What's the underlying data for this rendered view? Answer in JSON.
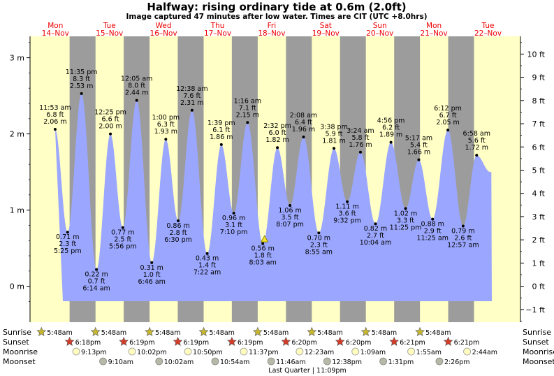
{
  "header": {
    "title": "Halfway: rising  ordinary tide at 0.6m (2.0ft)",
    "subtitle": "Image captured 47 minutes after low water. Times are CIT (UTC +8.0hrs)"
  },
  "colors": {
    "day": "#ffffc6",
    "night": "#9c9c9c",
    "tide_fill": "#9ba7ff",
    "day_label": "#ee0000",
    "sunrise_star": "#c8b830",
    "sunset_star": "#d23c28",
    "moonrise": "#fffcc0",
    "moonset": "#b8b8a8"
  },
  "chart_data": {
    "type": "area",
    "title": "Halfway: rising  ordinary tide at 0.6m (2.0ft)",
    "y_left_unit": "m",
    "y_left_ticks": [
      "0 m",
      "1 m",
      "2 m",
      "3 m"
    ],
    "y_right_ticks": [
      "−1 ft",
      "0 ft",
      "1 ft",
      "2 ft",
      "3 ft",
      "4 ft",
      "5 ft",
      "6 ft",
      "7 ft",
      "8 ft",
      "9 ft",
      "10 ft"
    ],
    "ylim": [
      -0.27,
      3.42
    ],
    "days": [
      {
        "dow": "Mon",
        "date": "14–Nov"
      },
      {
        "dow": "Tue",
        "date": "15–Nov"
      },
      {
        "dow": "Wed",
        "date": "16–Nov"
      },
      {
        "dow": "Thu",
        "date": "17–Nov"
      },
      {
        "dow": "Fri",
        "date": "18–Nov"
      },
      {
        "dow": "Sat",
        "date": "19–Nov"
      },
      {
        "dow": "Sun",
        "date": "20–Nov"
      },
      {
        "dow": "Mon",
        "date": "21–Nov"
      },
      {
        "dow": "Tue",
        "date": "22–Nov"
      }
    ],
    "start_time": "2022-11-14T00:00",
    "end_time": "2022-11-22T08:00",
    "current_time": "2022-11-18T08:50",
    "current_height_m": 0.6,
    "tides": [
      {
        "time": "11:53 am",
        "day": 0,
        "hour": 11.883,
        "type": "high",
        "m": 2.06,
        "ft": "6.8 ft",
        "m_label": "2.06 m"
      },
      {
        "time": "5:25 pm",
        "day": 0,
        "hour": 17.417,
        "type": "low",
        "m": 0.71,
        "ft": "2.3 ft",
        "m_label": "0.71 m"
      },
      {
        "time": "11:35 pm",
        "day": 0,
        "hour": 23.583,
        "type": "high",
        "m": 2.53,
        "ft": "8.3 ft",
        "m_label": "2.53 m"
      },
      {
        "time": "6:14 am",
        "day": 1,
        "hour": 6.233,
        "type": "low",
        "m": 0.22,
        "ft": "0.7 ft",
        "m_label": "0.22 m"
      },
      {
        "time": "12:25 pm",
        "day": 1,
        "hour": 12.417,
        "type": "high",
        "m": 2.0,
        "ft": "6.6 ft",
        "m_label": "2.00 m"
      },
      {
        "time": "5:56 pm",
        "day": 1,
        "hour": 17.933,
        "type": "low",
        "m": 0.77,
        "ft": "2.5 ft",
        "m_label": "0.77 m"
      },
      {
        "time": "12:05 am",
        "day": 2,
        "hour": 0.083,
        "type": "high",
        "m": 2.44,
        "ft": "8.0 ft",
        "m_label": "2.44 m"
      },
      {
        "time": "6:46 am",
        "day": 2,
        "hour": 6.767,
        "type": "low",
        "m": 0.31,
        "ft": "1.0 ft",
        "m_label": "0.31 m"
      },
      {
        "time": "1:00 pm",
        "day": 2,
        "hour": 13.0,
        "type": "high",
        "m": 1.93,
        "ft": "6.3 ft",
        "m_label": "1.93 m"
      },
      {
        "time": "6:30 pm",
        "day": 2,
        "hour": 18.5,
        "type": "low",
        "m": 0.86,
        "ft": "2.8 ft",
        "m_label": "0.86 m"
      },
      {
        "time": "12:38 am",
        "day": 3,
        "hour": 0.633,
        "type": "high",
        "m": 2.31,
        "ft": "7.6 ft",
        "m_label": "2.31 m"
      },
      {
        "time": "7:22 am",
        "day": 3,
        "hour": 7.367,
        "type": "low",
        "m": 0.43,
        "ft": "1.4 ft",
        "m_label": "0.43 m"
      },
      {
        "time": "1:39 pm",
        "day": 3,
        "hour": 13.65,
        "type": "high",
        "m": 1.86,
        "ft": "6.1 ft",
        "m_label": "1.86 m"
      },
      {
        "time": "7:10 pm",
        "day": 3,
        "hour": 19.167,
        "type": "low",
        "m": 0.96,
        "ft": "3.1 ft",
        "m_label": "0.96 m"
      },
      {
        "time": "1:16 am",
        "day": 4,
        "hour": 1.267,
        "type": "high",
        "m": 2.15,
        "ft": "7.1 ft",
        "m_label": "2.15 m"
      },
      {
        "time": "8:03 am",
        "day": 4,
        "hour": 8.05,
        "type": "low",
        "m": 0.56,
        "ft": "1.8 ft",
        "m_label": "0.56 m"
      },
      {
        "time": "2:32 pm",
        "day": 4,
        "hour": 14.533,
        "type": "high",
        "m": 1.82,
        "ft": "6.0 ft",
        "m_label": "1.82 m"
      },
      {
        "time": "8:07 pm",
        "day": 4,
        "hour": 20.117,
        "type": "low",
        "m": 1.06,
        "ft": "3.5 ft",
        "m_label": "1.06 m"
      },
      {
        "time": "2:08 am",
        "day": 5,
        "hour": 2.133,
        "type": "high",
        "m": 1.96,
        "ft": "6.4 ft",
        "m_label": "1.96 m"
      },
      {
        "time": "8:55 am",
        "day": 5,
        "hour": 8.917,
        "type": "low",
        "m": 0.7,
        "ft": "2.3 ft",
        "m_label": "0.70 m"
      },
      {
        "time": "3:38 pm",
        "day": 5,
        "hour": 15.633,
        "type": "high",
        "m": 1.81,
        "ft": "5.9 ft",
        "m_label": "1.81 m"
      },
      {
        "time": "9:32 pm",
        "day": 5,
        "hour": 21.533,
        "type": "low",
        "m": 1.11,
        "ft": "3.6 ft",
        "m_label": "1.11 m"
      },
      {
        "time": "3:24 am",
        "day": 6,
        "hour": 3.4,
        "type": "high",
        "m": 1.76,
        "ft": "5.8 ft",
        "m_label": "1.76 m"
      },
      {
        "time": "10:04 am",
        "day": 6,
        "hour": 10.067,
        "type": "low",
        "m": 0.82,
        "ft": "2.7 ft",
        "m_label": "0.82 m"
      },
      {
        "time": "4:56 pm",
        "day": 6,
        "hour": 16.933,
        "type": "high",
        "m": 1.89,
        "ft": "6.2 ft",
        "m_label": "1.89 m"
      },
      {
        "time": "11:25 pm",
        "day": 6,
        "hour": 23.417,
        "type": "low",
        "m": 1.02,
        "ft": "3.3 ft",
        "m_label": "1.02 m"
      },
      {
        "time": "5:17 am",
        "day": 7,
        "hour": 5.283,
        "type": "high",
        "m": 1.66,
        "ft": "5.4 ft",
        "m_label": "1.66 m"
      },
      {
        "time": "11:25 am",
        "day": 7,
        "hour": 11.417,
        "type": "low",
        "m": 0.88,
        "ft": "2.9 ft",
        "m_label": "0.88 m"
      },
      {
        "time": "6:12 pm",
        "day": 7,
        "hour": 18.2,
        "type": "high",
        "m": 2.05,
        "ft": "6.7 ft",
        "m_label": "2.05 m"
      },
      {
        "time": "12:57 am",
        "day": 8,
        "hour": 0.95,
        "type": "low",
        "m": 0.79,
        "ft": "2.6 ft",
        "m_label": "0.79 m"
      },
      {
        "time": "6:58 am",
        "day": 8,
        "hour": 6.967,
        "type": "high",
        "m": 1.72,
        "ft": "5.6 ft",
        "m_label": "1.72 m"
      }
    ]
  },
  "astro": {
    "row_labels": {
      "sunrise": "Sunrise",
      "sunset": "Sunset",
      "moonrise": "Moonrise",
      "moonset": "Moonset"
    },
    "sunrise": [
      {
        "day": 0,
        "hour": 5.8,
        "label": "5:48am"
      },
      {
        "day": 1,
        "hour": 5.8,
        "label": "5:48am"
      },
      {
        "day": 2,
        "hour": 5.8,
        "label": "5:48am"
      },
      {
        "day": 3,
        "hour": 5.8,
        "label": "5:48am"
      },
      {
        "day": 4,
        "hour": 5.8,
        "label": "5:48am"
      },
      {
        "day": 5,
        "hour": 5.8,
        "label": "5:48am"
      },
      {
        "day": 6,
        "hour": 5.8,
        "label": "5:48am"
      },
      {
        "day": 7,
        "hour": 5.8,
        "label": "5:48am"
      }
    ],
    "sunset": [
      {
        "day": 0,
        "hour": 18.3,
        "label": "6:18pm"
      },
      {
        "day": 1,
        "hour": 18.317,
        "label": "6:19pm"
      },
      {
        "day": 2,
        "hour": 18.317,
        "label": "6:19pm"
      },
      {
        "day": 3,
        "hour": 18.317,
        "label": "6:19pm"
      },
      {
        "day": 4,
        "hour": 18.333,
        "label": "6:20pm"
      },
      {
        "day": 5,
        "hour": 18.333,
        "label": "6:20pm"
      },
      {
        "day": 6,
        "hour": 18.35,
        "label": "6:21pm"
      },
      {
        "day": 7,
        "hour": 18.35,
        "label": "6:21pm"
      }
    ],
    "moonrise": [
      {
        "day": 0,
        "hour": 21.217,
        "label": "9:13pm"
      },
      {
        "day": 1,
        "hour": 22.033,
        "label": "10:02pm"
      },
      {
        "day": 2,
        "hour": 22.833,
        "label": "10:50pm"
      },
      {
        "day": 3,
        "hour": 23.617,
        "label": "11:37pm"
      },
      {
        "day": 5,
        "hour": 0.383,
        "label": "12:23am"
      },
      {
        "day": 6,
        "hour": 1.15,
        "label": "1:09am"
      },
      {
        "day": 7,
        "hour": 1.917,
        "label": "1:55am"
      },
      {
        "day": 8,
        "hour": 2.733,
        "label": "2:44am"
      }
    ],
    "moonset": [
      {
        "day": 1,
        "hour": 9.167,
        "label": "9:10am"
      },
      {
        "day": 2,
        "hour": 10.033,
        "label": "10:02am"
      },
      {
        "day": 3,
        "hour": 10.9,
        "label": "10:54am"
      },
      {
        "day": 4,
        "hour": 11.767,
        "label": "11:46am"
      },
      {
        "day": 5,
        "hour": 12.633,
        "label": "12:38pm"
      },
      {
        "day": 6,
        "hour": 13.517,
        "label": "1:31pm"
      },
      {
        "day": 7,
        "hour": 14.433,
        "label": "2:26pm"
      }
    ],
    "moon_phase": "Last Quarter | 11:09pm"
  }
}
